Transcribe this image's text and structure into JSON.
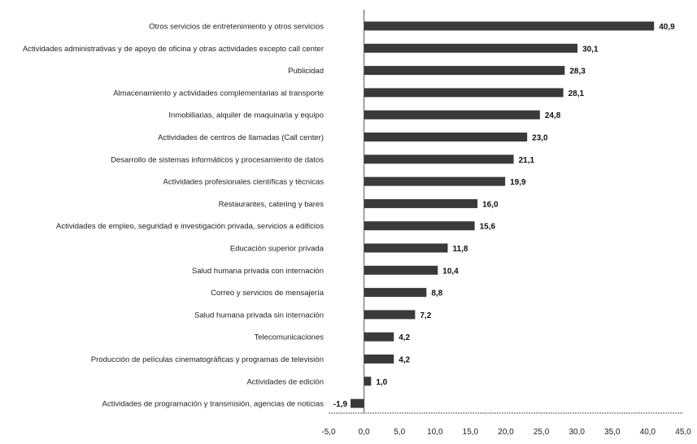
{
  "chart_data": {
    "type": "bar",
    "orientation": "horizontal",
    "categories": [
      "Otros servicios de entretenimiento y otros servicios",
      "Actividades administrativas y de apoyo de oficina y otras actividades excepto call center",
      "Publicidad",
      "Almacenamiento y actividades complementarias al transporte",
      "Inmobiliarias, alquiler de maquinaria y equipo",
      "Actividades de centros de llamadas (Call center)",
      "Desarrollo de sistemas informáticos y procesamiento de datos",
      "Actividades profesionales científicas y técnicas",
      "Restaurantes, catering y bares",
      "Actividades de empleo, seguridad e investigación privada, servicios a edificios",
      "Educación superior privada",
      "Salud humana privada con internación",
      "Correo y servicios de mensajería",
      "Salud humana privada sin internación",
      "Telecomunicaciones",
      "Producción de películas cinematográficas y programas de televisión",
      "Actividades de edición",
      "Actividades de programación y transmisión, agencias de noticias"
    ],
    "values": [
      40.9,
      30.1,
      28.3,
      28.1,
      24.8,
      23.0,
      21.1,
      19.9,
      16.0,
      15.6,
      11.8,
      10.4,
      8.8,
      7.2,
      4.2,
      4.2,
      1.0,
      -1.9
    ],
    "value_labels": [
      "40,9",
      "30,1",
      "28,3",
      "28,1",
      "24,8",
      "23,0",
      "21,1",
      "19,9",
      "16,0",
      "15,6",
      "11,8",
      "10,4",
      "8,8",
      "7,2",
      "4,2",
      "4,2",
      "1,0",
      "-1,9"
    ],
    "xlim": [
      -5.0,
      45.0
    ],
    "xticks": [
      -5.0,
      0.0,
      5.0,
      10.0,
      15.0,
      20.0,
      25.0,
      30.0,
      35.0,
      40.0,
      45.0
    ],
    "xtick_labels": [
      "-5,0",
      "0,0",
      "5,0",
      "10,0",
      "15,0",
      "20,0",
      "25,0",
      "30,0",
      "35,0",
      "40,0",
      "45,0"
    ],
    "title": "",
    "xlabel": "",
    "ylabel": "",
    "grid": false,
    "legend": "none",
    "bar_color": "#3a3a3a",
    "axis_color": "#555555"
  }
}
